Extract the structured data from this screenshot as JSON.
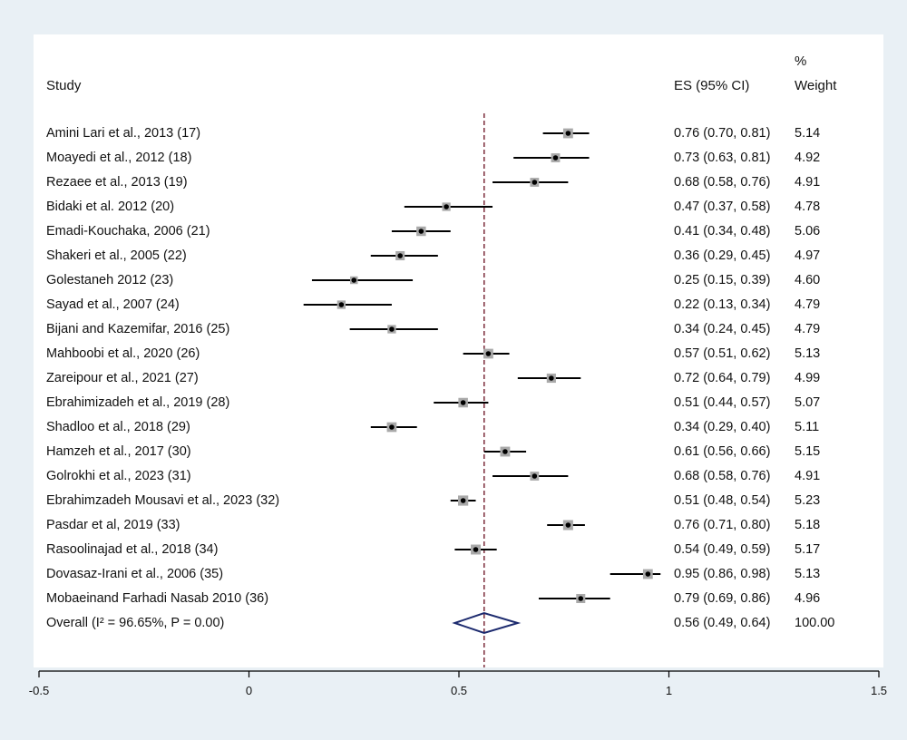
{
  "header": {
    "study": "Study",
    "es": "ES (95% CI)",
    "weight_line1": "%",
    "weight_line2": "Weight"
  },
  "chart_data": {
    "type": "forest",
    "xlim": [
      -0.5,
      1.5
    ],
    "x_ticks": [
      "-0.5",
      "0",
      "0.5",
      "1",
      "1.5"
    ],
    "null_line": 0.56,
    "studies": [
      {
        "label": "Amini Lari et al., 2013 (17)",
        "es": 0.76,
        "lo": 0.7,
        "hi": 0.81,
        "es_text": "0.76 (0.70, 0.81)",
        "weight": "5.14"
      },
      {
        "label": "Moayedi et al., 2012 (18)",
        "es": 0.73,
        "lo": 0.63,
        "hi": 0.81,
        "es_text": "0.73 (0.63, 0.81)",
        "weight": "4.92"
      },
      {
        "label": "Rezaee et al., 2013 (19)",
        "es": 0.68,
        "lo": 0.58,
        "hi": 0.76,
        "es_text": "0.68 (0.58, 0.76)",
        "weight": "4.91"
      },
      {
        "label": "Bidaki et al. 2012 (20)",
        "es": 0.47,
        "lo": 0.37,
        "hi": 0.58,
        "es_text": "0.47 (0.37, 0.58)",
        "weight": "4.78"
      },
      {
        "label": "Emadi-Kouchaka, 2006 (21)",
        "es": 0.41,
        "lo": 0.34,
        "hi": 0.48,
        "es_text": "0.41 (0.34, 0.48)",
        "weight": "5.06"
      },
      {
        "label": "Shakeri et al., 2005 (22)",
        "es": 0.36,
        "lo": 0.29,
        "hi": 0.45,
        "es_text": "0.36 (0.29, 0.45)",
        "weight": "4.97"
      },
      {
        "label": "Golestaneh 2012 (23)",
        "es": 0.25,
        "lo": 0.15,
        "hi": 0.39,
        "es_text": "0.25 (0.15, 0.39)",
        "weight": "4.60"
      },
      {
        "label": "Sayad et al., 2007 (24)",
        "es": 0.22,
        "lo": 0.13,
        "hi": 0.34,
        "es_text": "0.22 (0.13, 0.34)",
        "weight": "4.79"
      },
      {
        "label": "Bijani and Kazemifar, 2016 (25)",
        "es": 0.34,
        "lo": 0.24,
        "hi": 0.45,
        "es_text": "0.34 (0.24, 0.45)",
        "weight": "4.79"
      },
      {
        "label": "Mahboobi et al., 2020 (26)",
        "es": 0.57,
        "lo": 0.51,
        "hi": 0.62,
        "es_text": "0.57 (0.51, 0.62)",
        "weight": "5.13"
      },
      {
        "label": "Zareipour et al., 2021 (27)",
        "es": 0.72,
        "lo": 0.64,
        "hi": 0.79,
        "es_text": "0.72 (0.64, 0.79)",
        "weight": "4.99"
      },
      {
        "label": "Ebrahimizadeh et al., 2019 (28)",
        "es": 0.51,
        "lo": 0.44,
        "hi": 0.57,
        "es_text": "0.51 (0.44, 0.57)",
        "weight": "5.07"
      },
      {
        "label": "Shadloo et al., 2018 (29)",
        "es": 0.34,
        "lo": 0.29,
        "hi": 0.4,
        "es_text": "0.34 (0.29, 0.40)",
        "weight": "5.11"
      },
      {
        "label": "Hamzeh et al., 2017 (30)",
        "es": 0.61,
        "lo": 0.56,
        "hi": 0.66,
        "es_text": "0.61 (0.56, 0.66)",
        "weight": "5.15"
      },
      {
        "label": "Golrokhi et al., 2023 (31)",
        "es": 0.68,
        "lo": 0.58,
        "hi": 0.76,
        "es_text": "0.68 (0.58, 0.76)",
        "weight": "4.91"
      },
      {
        "label": "Ebrahimzadeh Mousavi et al., 2023 (32)",
        "es": 0.51,
        "lo": 0.48,
        "hi": 0.54,
        "es_text": "0.51 (0.48, 0.54)",
        "weight": "5.23"
      },
      {
        "label": "Pasdar et al, 2019 (33)",
        "es": 0.76,
        "lo": 0.71,
        "hi": 0.8,
        "es_text": "0.76 (0.71, 0.80)",
        "weight": "5.18"
      },
      {
        "label": "Rasoolinajad et al., 2018 (34)",
        "es": 0.54,
        "lo": 0.49,
        "hi": 0.59,
        "es_text": "0.54 (0.49, 0.59)",
        "weight": "5.17"
      },
      {
        "label": "Dovasaz-Irani et al., 2006 (35)",
        "es": 0.95,
        "lo": 0.86,
        "hi": 0.98,
        "es_text": "0.95 (0.86, 0.98)",
        "weight": "5.13"
      },
      {
        "label": "Mobaeinand Farhadi Nasab 2010 (36)",
        "es": 0.79,
        "lo": 0.69,
        "hi": 0.86,
        "es_text": "0.79 (0.69, 0.86)",
        "weight": "4.96"
      }
    ],
    "overall": {
      "label": "Overall  (I² = 96.65%, P = 0.00)",
      "es": 0.56,
      "lo": 0.49,
      "hi": 0.64,
      "es_text": "0.56 (0.49, 0.64)",
      "weight": "100.00"
    }
  },
  "colors": {
    "panel": "#ffffff",
    "background": "#e9f0f5",
    "ci_line": "#000000",
    "box": "#a9a9a9",
    "point": "#000000",
    "ref_line": "#7b2b3a",
    "diamond": "#1c2a6e"
  }
}
